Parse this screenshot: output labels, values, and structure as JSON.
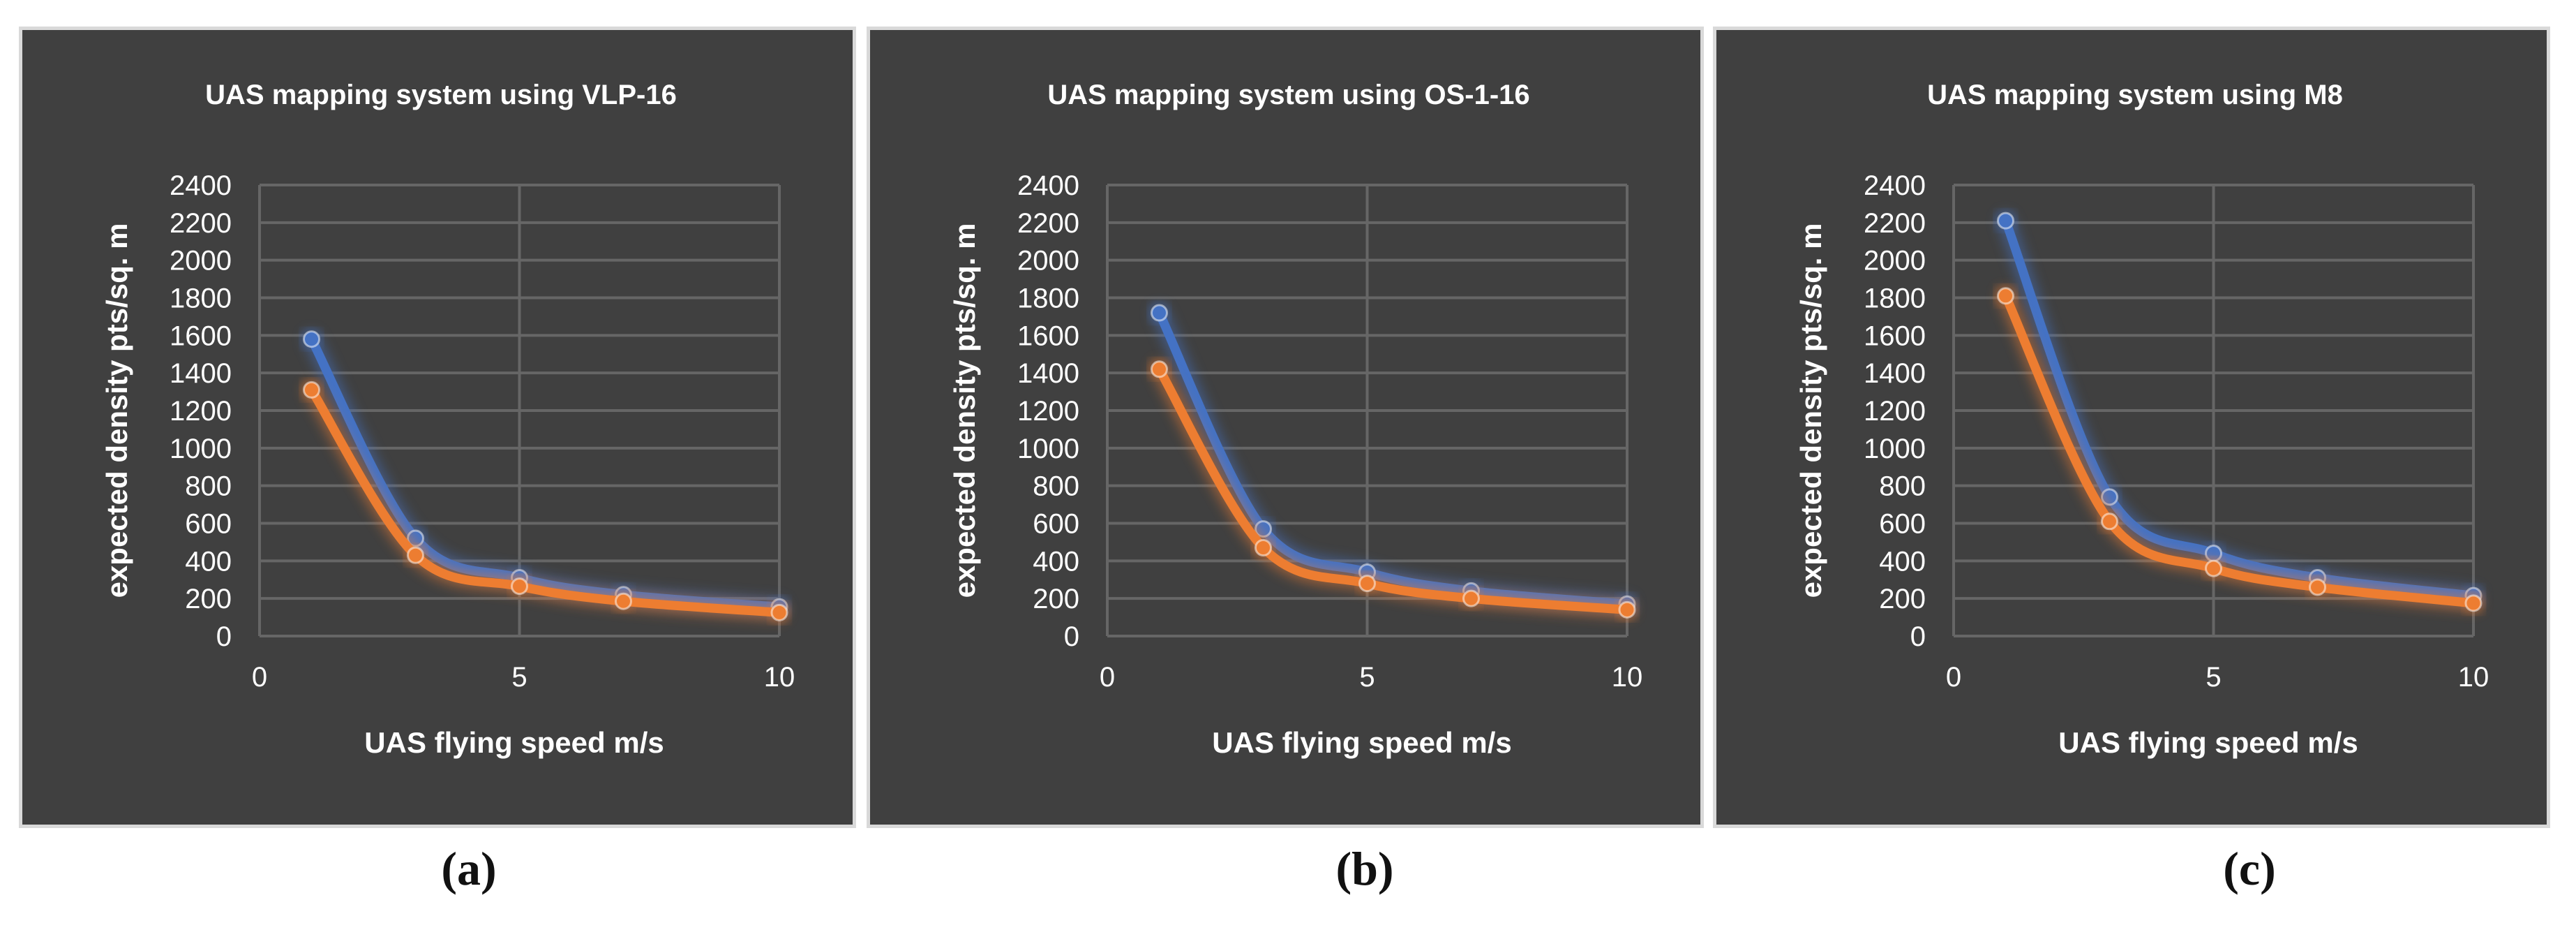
{
  "chart_data": [
    {
      "type": "line",
      "title": "UAS mapping system using VLP-16",
      "xlabel": "UAS flying speed m/s",
      "ylabel": "expected density pts/sq. m",
      "xlim": [
        0,
        10
      ],
      "ylim": [
        0,
        2400
      ],
      "xticks": [
        "0",
        "5",
        "10"
      ],
      "yticks": [
        "0",
        "200",
        "400",
        "600",
        "800",
        "1000",
        "1200",
        "1400",
        "1600",
        "1800",
        "2000",
        "2200",
        "2400"
      ],
      "x": [
        1,
        3,
        5,
        7,
        10
      ],
      "series": [
        {
          "name": "series-blue",
          "color": "#4472c4",
          "values": [
            1580,
            520,
            310,
            220,
            155
          ]
        },
        {
          "name": "series-orange",
          "color": "#ed7d31",
          "values": [
            1310,
            430,
            265,
            185,
            125
          ]
        }
      ],
      "caption": "(a)"
    },
    {
      "type": "line",
      "title": "UAS mapping system using OS-1-16",
      "xlabel": "UAS flying speed m/s",
      "ylabel": "expected density pts/sq. m",
      "xlim": [
        0,
        10
      ],
      "ylim": [
        0,
        2400
      ],
      "xticks": [
        "0",
        "5",
        "10"
      ],
      "yticks": [
        "0",
        "200",
        "400",
        "600",
        "800",
        "1000",
        "1200",
        "1400",
        "1600",
        "1800",
        "2000",
        "2200",
        "2400"
      ],
      "x": [
        1,
        3,
        5,
        7,
        10
      ],
      "series": [
        {
          "name": "series-blue",
          "color": "#4472c4",
          "values": [
            1720,
            570,
            340,
            240,
            170
          ]
        },
        {
          "name": "series-orange",
          "color": "#ed7d31",
          "values": [
            1420,
            470,
            280,
            200,
            140
          ]
        }
      ],
      "caption": "(b)"
    },
    {
      "type": "line",
      "title": "UAS mapping system using M8",
      "xlabel": "UAS flying speed m/s",
      "ylabel": "expected density pts/sq. m",
      "xlim": [
        0,
        10
      ],
      "ylim": [
        0,
        2400
      ],
      "xticks": [
        "0",
        "5",
        "10"
      ],
      "yticks": [
        "0",
        "200",
        "400",
        "600",
        "800",
        "1000",
        "1200",
        "1400",
        "1600",
        "1800",
        "2000",
        "2200",
        "2400"
      ],
      "x": [
        1,
        3,
        5,
        7,
        10
      ],
      "series": [
        {
          "name": "series-blue",
          "color": "#4472c4",
          "values": [
            2210,
            740,
            440,
            310,
            215
          ]
        },
        {
          "name": "series-orange",
          "color": "#ed7d31",
          "values": [
            1810,
            610,
            360,
            260,
            175
          ]
        }
      ],
      "caption": "(c)"
    }
  ]
}
